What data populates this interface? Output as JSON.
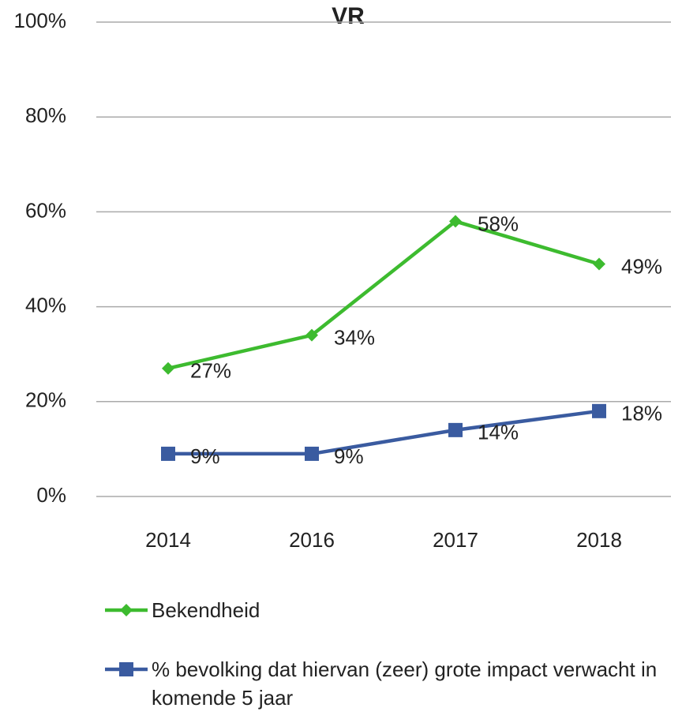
{
  "chart_data": {
    "type": "line",
    "title": "VR",
    "categories": [
      "2014",
      "2016",
      "2017",
      "2018"
    ],
    "series": [
      {
        "name": "Bekendheid",
        "color": "#3dbb2f",
        "marker": "diamond",
        "values": [
          27,
          34,
          58,
          49
        ],
        "value_labels": [
          "27%",
          "34%",
          "58%",
          "49%"
        ]
      },
      {
        "name": "% bevolking dat hiervan (zeer) grote impact verwacht in komende 5 jaar",
        "color": "#3a5ba0",
        "marker": "square",
        "values": [
          9,
          9,
          14,
          18
        ],
        "value_labels": [
          "9%",
          "9%",
          "14%",
          "18%"
        ]
      }
    ],
    "ylim": [
      0,
      100
    ],
    "yticks": [
      {
        "value": 0,
        "label": "0%"
      },
      {
        "value": 20,
        "label": "20%"
      },
      {
        "value": 40,
        "label": "40%"
      },
      {
        "value": 60,
        "label": "60%"
      },
      {
        "value": 80,
        "label": "80%"
      },
      {
        "value": 100,
        "label": "100%"
      }
    ],
    "grid": true,
    "legend": "bottom"
  }
}
